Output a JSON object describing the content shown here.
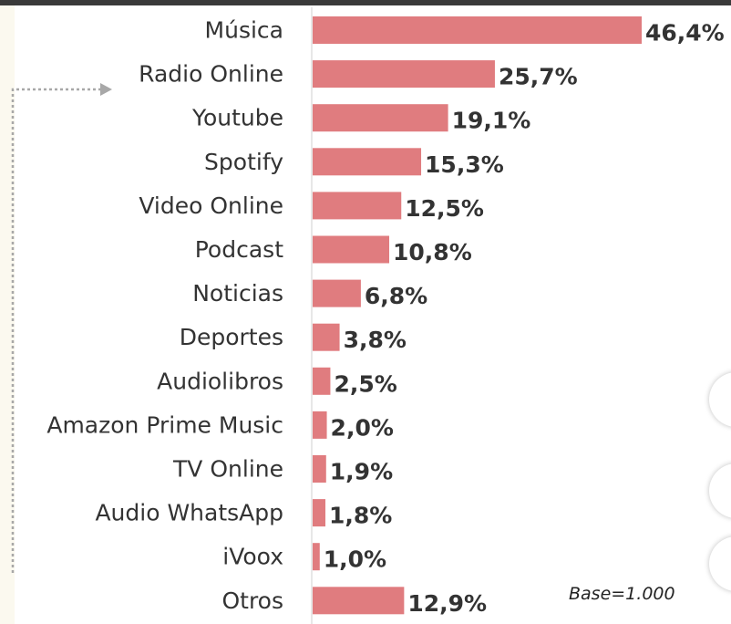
{
  "chart_data": {
    "type": "bar",
    "orientation": "horizontal",
    "categories": [
      "Música",
      "Radio Online",
      "Youtube",
      "Spotify",
      "Video Online",
      "Podcast",
      "Noticias",
      "Deportes",
      "Audiolibros",
      "Amazon Prime Music",
      "TV Online",
      "Audio WhatsApp",
      "iVoox",
      "Otros"
    ],
    "values": [
      46.4,
      25.7,
      19.1,
      15.3,
      12.5,
      10.8,
      6.8,
      3.8,
      2.5,
      2.0,
      1.9,
      1.8,
      1.0,
      12.9
    ],
    "value_labels": [
      "46,4%",
      "25,7%",
      "19,1%",
      "15,3%",
      "12,5%",
      "10,8%",
      "6,8%",
      "3,8%",
      "2,5%",
      "2,0%",
      "1,9%",
      "1,8%",
      "1,0%",
      "12,9%"
    ],
    "xlim": [
      0,
      46.4
    ],
    "grid": false,
    "bar_color": "#e07c7f",
    "annotation": "Base=1.000"
  }
}
